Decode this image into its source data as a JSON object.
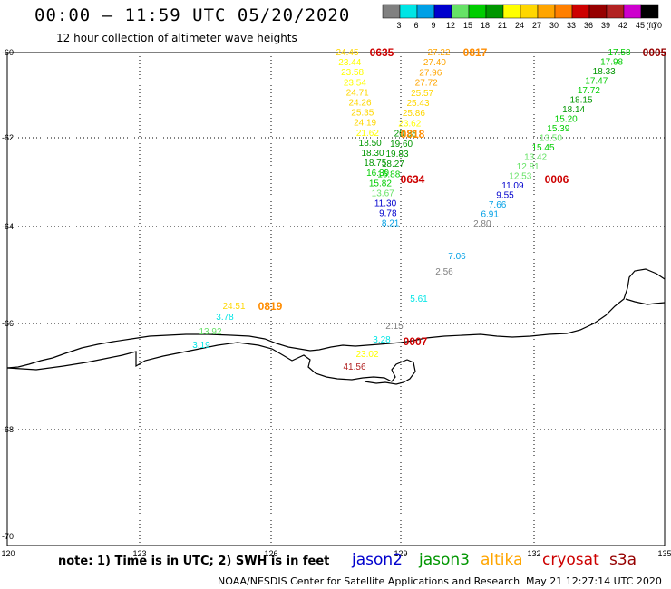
{
  "header": {
    "title": "00:00 – 11:59 UTC 05/20/2020",
    "subtitle": "12 hour collection of altimeter wave heights"
  },
  "legend": {
    "unit": "(ft)",
    "ticks": [
      "3",
      "6",
      "9",
      "12",
      "15",
      "18",
      "21",
      "24",
      "27",
      "30",
      "33",
      "36",
      "39",
      "42",
      "45",
      "70"
    ],
    "colors": [
      "#808080",
      "#00e5e5",
      "#00a0e6",
      "#0000cd",
      "#66e266",
      "#00cd00",
      "#009600",
      "#ffff00",
      "#ffd700",
      "#ffa500",
      "#ff7f00",
      "#cd0000",
      "#960000",
      "#b22222",
      "#cd00cd",
      "#000000"
    ]
  },
  "axes": {
    "lon_labels": [
      "120",
      "123",
      "126",
      "129",
      "132",
      "135"
    ],
    "lat_labels": [
      "-60",
      "-62",
      "-64",
      "-66",
      "-68",
      "-70"
    ]
  },
  "tracks": [
    {
      "id": "t_0635",
      "satellite": "cryosat",
      "time_label": "0635",
      "values": [
        "24.45",
        "23.44",
        "23.58",
        "23.54",
        "24.71",
        "24.26",
        "25.35",
        "24.19",
        "21.62",
        "18.50",
        "18.30",
        "18.75",
        "16.39",
        "15.82",
        "13.67",
        "11.30",
        "9.78",
        "8.21"
      ]
    },
    {
      "id": "t_0817",
      "satellite": "altika",
      "time_label": "0817",
      "values": [
        "27.22",
        "27.40",
        "27.96",
        "27.72",
        "25.57",
        "25.43",
        "25.86",
        "23.62",
        "20.38",
        "19.60",
        "19.83",
        "18.27",
        "16.88"
      ]
    },
    {
      "id": "t_0818",
      "satellite": "altika",
      "time_label": "0818",
      "values": []
    },
    {
      "id": "t_0634",
      "satellite": "cryosat",
      "time_label": "0634",
      "values": []
    },
    {
      "id": "t_0005",
      "satellite": "s3a",
      "time_label": "0005",
      "values": [
        "17.58",
        "17.98",
        "18.33",
        "17.47",
        "17.72",
        "18.15",
        "18.14",
        "15.20",
        "15.39",
        "13.50",
        "15.45",
        "13.42",
        "12.81",
        "12.53",
        "11.09",
        "9.55",
        "7.66",
        "6.91",
        "2.80"
      ]
    },
    {
      "id": "t_0006",
      "satellite": "cryosat",
      "time_label": "0006",
      "values": []
    },
    {
      "id": "t_0007",
      "satellite": "cryosat",
      "time_label": "0007",
      "values": [
        "7.06",
        "2.56",
        "5.61",
        "2.15",
        "3.28",
        "23.02",
        "41.56"
      ]
    },
    {
      "id": "t_0819",
      "satellite": "altika",
      "time_label": "0819",
      "values": [
        "24.51",
        "3.78",
        "13.92",
        "3.19"
      ]
    }
  ],
  "footer": {
    "note": "note: 1) Time is in UTC; 2) SWH is in feet",
    "satellites": [
      {
        "name": "jason2",
        "color": "#0000cd"
      },
      {
        "name": "jason3",
        "color": "#009600"
      },
      {
        "name": "altika",
        "color": "#ffa500"
      },
      {
        "name": "cryosat",
        "color": "#cd0000"
      },
      {
        "name": "s3a",
        "color": "#960000"
      }
    ],
    "credit": "NOAA/NESDIS Center for Satellite Applications and Research",
    "timestamp": "May 21 12:27:14 UTC 2020"
  }
}
